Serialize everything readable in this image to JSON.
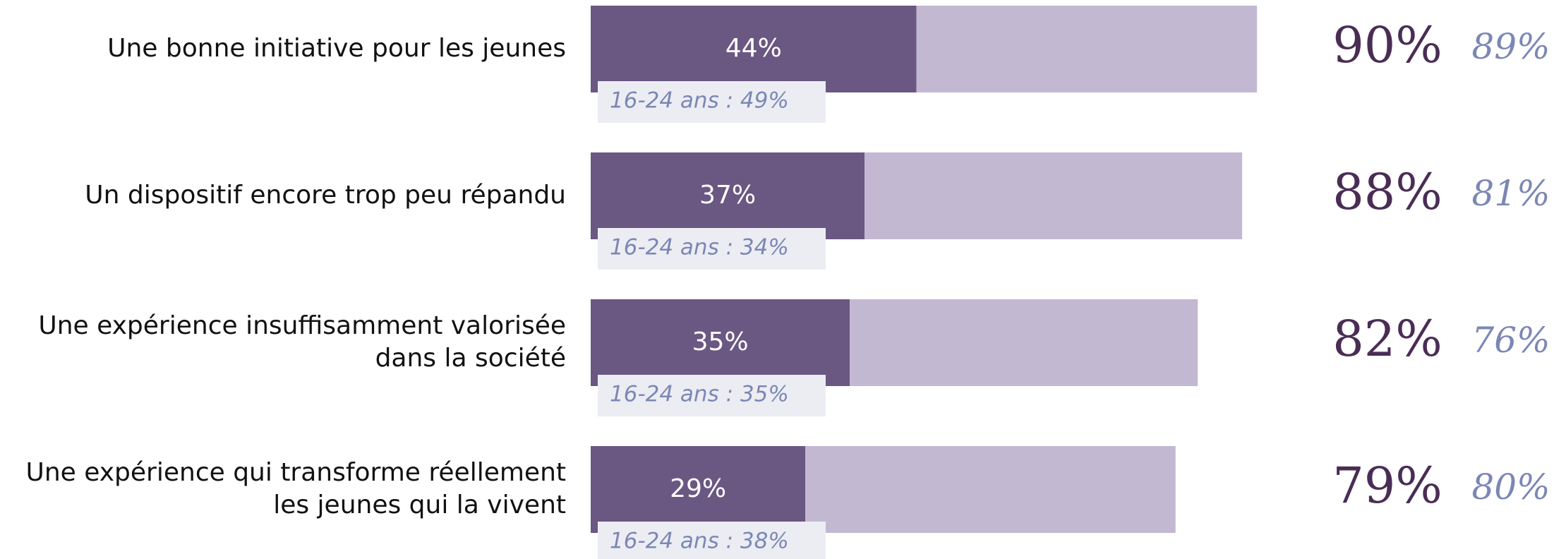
{
  "chart_data": {
    "type": "stacked-bar",
    "categories": [
      [
        "Une bonne initiative pour les jeunes"
      ],
      [
        "Un dispositif encore trop peu répandu"
      ],
      [
        "Une expérience insuffisamment valorisée",
        "dans la société"
      ],
      [
        "Une expérience qui transforme réellement",
        "les jeunes qui la vivent"
      ]
    ],
    "series": [
      {
        "color": "#6a5782",
        "values": [
          44,
          37,
          35,
          29
        ],
        "value_labels": [
          "44%",
          "37%",
          "35%",
          "29%"
        ]
      },
      {
        "color": "#c3b8d1",
        "values": [
          46,
          51,
          47,
          50
        ]
      }
    ],
    "totals": {
      "color": "#4a2d55",
      "values": [
        90,
        88,
        82,
        79
      ],
      "value_labels": [
        "90%",
        "88%",
        "82%",
        "79%"
      ]
    },
    "previous": {
      "color": "#7b87b5",
      "values": [
        89,
        81,
        76,
        80
      ],
      "value_labels": [
        "89%",
        "81%",
        "76%",
        "80%"
      ]
    },
    "youth": {
      "color": "#ecedf3",
      "values": [
        49,
        34,
        35,
        38
      ],
      "value_labels": [
        "16-24 ans : 49%",
        "16-24 ans : 34%",
        "16-24 ans : 35%",
        "16-24 ans : 38%"
      ]
    },
    "xlim": [
      0,
      100
    ]
  }
}
